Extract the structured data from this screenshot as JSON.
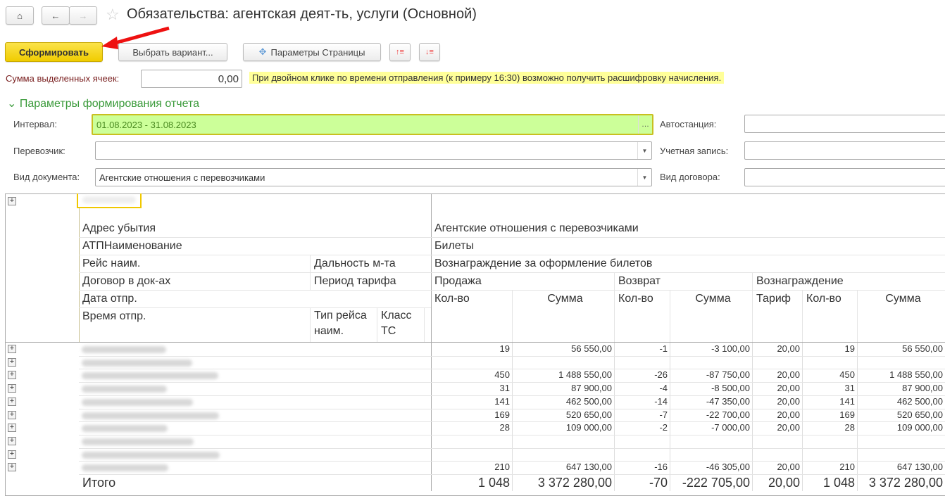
{
  "header": {
    "title": "Обязательства: агентская деят-ть, услуги (Основной)",
    "home_icon": "home-icon",
    "back_icon": "arrow-left-icon",
    "forward_icon": "arrow-right-icon",
    "favorite_icon": "star-icon"
  },
  "toolbar": {
    "generate": "Сформировать",
    "choose_variant": "Выбрать вариант...",
    "page_params": "Параметры Страницы",
    "accent": "#f5d000"
  },
  "sum": {
    "label": "Сумма выделенных ячеек:",
    "value": "0,00",
    "hint": "При двойном клике по времени отправления (к примеру 16:30) возможно получить расшифровку начисления."
  },
  "params": {
    "section_title": "Параметры формирования отчета",
    "interval_label": "Интервал:",
    "interval_value": "01.08.2023 - 31.08.2023",
    "carrier_label": "Перевозчик:",
    "carrier_value": "",
    "doc_type_label": "Вид документа:",
    "doc_type_value": "Агентские отношения с перевозчиками",
    "station_label": "Автостанция:",
    "account_label": "Учетная запись:",
    "contract_type_label": "Вид договора:"
  },
  "report": {
    "left_headers": {
      "arrival": "Адрес убытия",
      "atp": "АТПНаименование",
      "route": "Рейс наим.",
      "distance": "Дальность м-та",
      "contract": "Договор в док-ах",
      "tariff_period": "Период тарифа",
      "date": "Дата отпр.",
      "time": "Время отпр.",
      "route_type": "Тип рейса наим.",
      "bus_class": "Класс ТС"
    },
    "right_headers": {
      "doc": "Агентские отношения с перевозчиками",
      "tickets": "Билеты",
      "fee": "Вознаграждение за оформление билетов",
      "sale": "Продажа",
      "refund": "Возврат",
      "reward": "Вознаграждение",
      "qty": "Кол-во",
      "sum": "Сумма",
      "tariff": "Тариф"
    },
    "rows": [
      [
        "19",
        "56 550,00",
        "-1",
        "-3 100,00",
        "20,00",
        "19",
        "56 550,00"
      ],
      [
        "",
        "",
        "",
        "",
        "",
        "",
        ""
      ],
      [
        "450",
        "1 488 550,00",
        "-26",
        "-87 750,00",
        "20,00",
        "450",
        "1 488 550,00"
      ],
      [
        "31",
        "87 900,00",
        "-4",
        "-8 500,00",
        "20,00",
        "31",
        "87 900,00"
      ],
      [
        "141",
        "462 500,00",
        "-14",
        "-47 350,00",
        "20,00",
        "141",
        "462 500,00"
      ],
      [
        "169",
        "520 650,00",
        "-7",
        "-22 700,00",
        "20,00",
        "169",
        "520 650,00"
      ],
      [
        "28",
        "109 000,00",
        "-2",
        "-7 000,00",
        "20,00",
        "28",
        "109 000,00"
      ],
      [
        "",
        "",
        "",
        "",
        "",
        "",
        ""
      ],
      [
        "",
        "",
        "",
        "",
        "",
        "",
        ""
      ],
      [
        "210",
        "647 130,00",
        "-16",
        "-46 305,00",
        "20,00",
        "210",
        "647 130,00"
      ]
    ],
    "total_label": "Итого",
    "total": [
      "1 048",
      "3 372 280,00",
      "-70",
      "-222 705,00",
      "20,00",
      "1 048",
      "3 372 280,00"
    ]
  }
}
